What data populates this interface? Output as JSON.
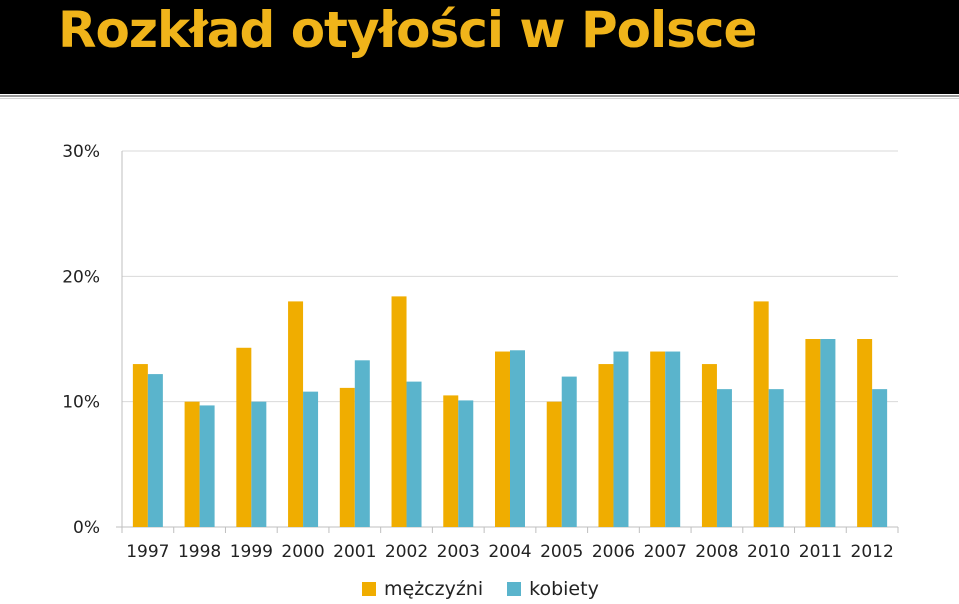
{
  "header": {
    "title": "Rozkład otyłości w Polsce"
  },
  "colors": {
    "accent": "#f0b41a",
    "header_bg": "#000000"
  },
  "chart_data": {
    "type": "bar",
    "title": "Rozkład otyłości w Polsce",
    "categories": [
      "1997",
      "1998",
      "1999",
      "2000",
      "2001",
      "2002",
      "2003",
      "2004",
      "2005",
      "2006",
      "2007",
      "2008",
      "2010",
      "2011",
      "2012"
    ],
    "y_ticks": [
      "0%",
      "10%",
      "20%",
      "30%"
    ],
    "ylim": [
      0,
      30
    ],
    "grid": true,
    "legend_position": "bottom",
    "series": [
      {
        "name": "mężczyźni",
        "color": "#f0ad00",
        "values": [
          13,
          10,
          14.3,
          18,
          11.1,
          18.4,
          10.5,
          14,
          10,
          13,
          14,
          13,
          18,
          15,
          15
        ]
      },
      {
        "name": "kobiety",
        "color": "#5ab4cc",
        "values": [
          12.2,
          9.7,
          10,
          10.8,
          13.3,
          11.6,
          10.1,
          14.1,
          12,
          14,
          14,
          11,
          11,
          15,
          11
        ]
      }
    ]
  }
}
